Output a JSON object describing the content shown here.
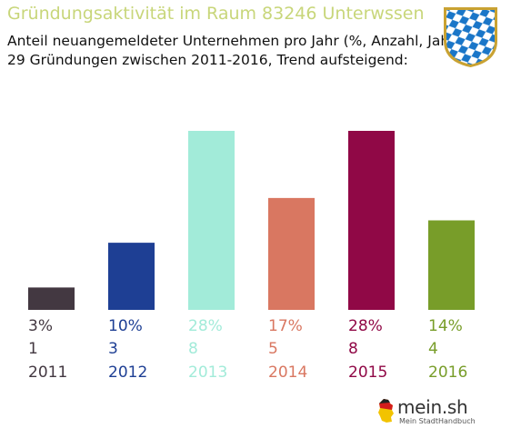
{
  "header": {
    "title": "Gründungsaktivität im Raum 83246 Unterwssen",
    "subtitle_line1": "Anteil neuangemeldeter Unternehmen pro Jahr (%, Anzahl, Jahr)",
    "subtitle_line2": "29 Gründungen zwischen 2011-2016, Trend aufsteigend:"
  },
  "colors": {
    "title": "#c8d67a",
    "bars": [
      "#433841",
      "#1e3f94",
      "#a2ebd9",
      "#d97761",
      "#900846",
      "#789d29"
    ],
    "crest_blue": "#1a76c8",
    "crest_border": "#c9a232"
  },
  "logo": {
    "name": "mein.sh",
    "tagline": "Mein StadtHandbuch",
    "icon": "germany-map-icon"
  },
  "crest_icon": "bavaria-lozenge-crest-icon",
  "chart_data": {
    "type": "bar",
    "categories": [
      "2011",
      "2012",
      "2013",
      "2014",
      "2015",
      "2016"
    ],
    "values": [
      1,
      3,
      8,
      5,
      8,
      4
    ],
    "percent_labels": [
      "3%",
      "10%",
      "28%",
      "17%",
      "28%",
      "14%"
    ],
    "count_labels": [
      "1",
      "3",
      "8",
      "5",
      "8",
      "4"
    ],
    "ylim": [
      0,
      8
    ],
    "grid": false,
    "legend": "none"
  }
}
